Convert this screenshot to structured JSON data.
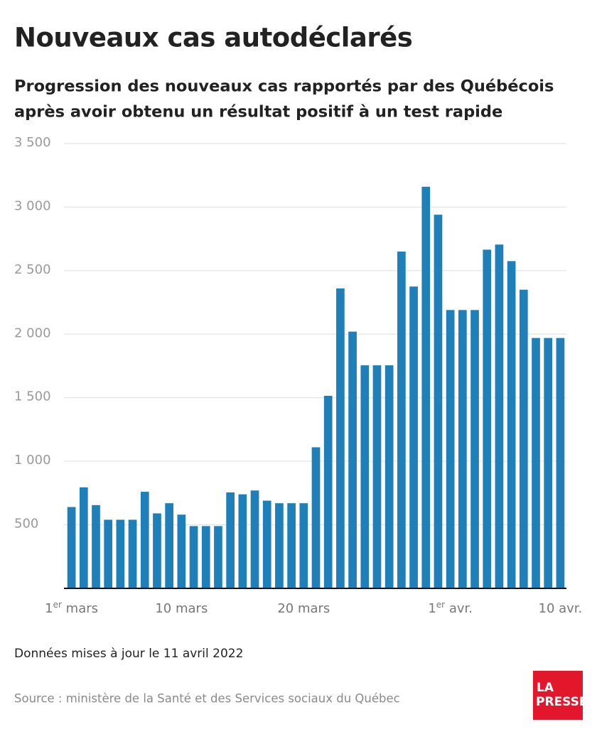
{
  "chart_data": {
    "type": "bar",
    "title": "Nouveaux cas autodéclarés",
    "subtitle": [
      "Progression des nouveaux cas rapportés par des Québécois",
      "après avoir obtenu un résultat positif à un test rapide"
    ],
    "categories": [
      "1er mars",
      null,
      null,
      null,
      null,
      null,
      null,
      null,
      null,
      "10 mars",
      null,
      null,
      null,
      null,
      null,
      null,
      null,
      null,
      null,
      "20 mars",
      null,
      null,
      null,
      null,
      null,
      null,
      null,
      null,
      null,
      null,
      null,
      "1er avr.",
      null,
      null,
      null,
      null,
      null,
      null,
      null,
      null,
      "10 avr."
    ],
    "values": [
      640,
      795,
      655,
      540,
      540,
      540,
      760,
      590,
      670,
      580,
      490,
      490,
      490,
      755,
      740,
      770,
      690,
      670,
      670,
      670,
      1110,
      1515,
      2360,
      2020,
      1755,
      1755,
      1755,
      2650,
      2375,
      3160,
      2940,
      2190,
      2190,
      2190,
      2665,
      2705,
      2575,
      2350,
      1970,
      1970,
      1970
    ],
    "color": "#1f7fb8",
    "ylim": [
      0,
      3500
    ],
    "yticks": [
      500,
      {
        "value": 1000,
        "label": "1 000"
      },
      {
        "value": 1500,
        "label": "1 500"
      },
      {
        "value": 2000,
        "label": "2 000"
      },
      {
        "value": 2500,
        "label": "2 500"
      },
      {
        "value": 3000,
        "label": "3 000"
      },
      {
        "value": 3500,
        "label": "3 500"
      }
    ],
    "grid": true,
    "note": "Données mises à jour le 11 avril 2022",
    "source": "Source : ministère de la Santé et des Services sociaux du Québec",
    "logo": [
      "LA",
      "PRESSE"
    ]
  }
}
